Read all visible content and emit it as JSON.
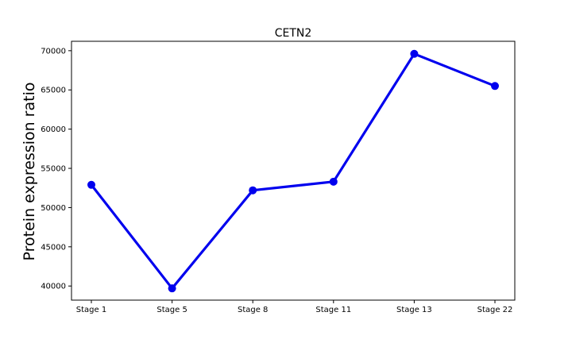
{
  "chart_data": {
    "type": "line",
    "title": "CETN2",
    "xlabel": "",
    "ylabel": "Protein expression ratio",
    "categories": [
      "Stage 1",
      "Stage 5",
      "Stage 8",
      "Stage 11",
      "Stage 13",
      "Stage 22"
    ],
    "series": [
      {
        "name": "CETN2",
        "values": [
          52900,
          39700,
          52200,
          53300,
          69600,
          65500
        ]
      }
    ],
    "ylim": [
      38200,
      71200
    ],
    "yticks": [
      40000,
      45000,
      50000,
      55000,
      60000,
      65000,
      70000
    ],
    "ytick_labels": [
      "40000",
      "45000",
      "50000",
      "55000",
      "60000",
      "65000",
      "70000"
    ],
    "grid": false,
    "color": "#0000ee"
  }
}
